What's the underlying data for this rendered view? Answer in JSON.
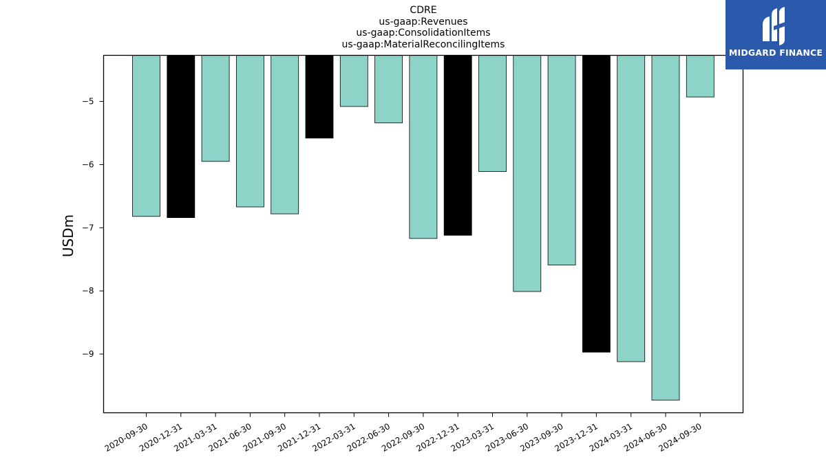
{
  "chart_data": {
    "type": "bar",
    "title": [
      "CDRE",
      "us-gaap:Revenues",
      "us-gaap:ConsolidationItems",
      "us-gaap:MaterialReconcilingItems"
    ],
    "ylabel": "USDm",
    "xlabel": "",
    "categories": [
      "2020-09-30",
      "2020-12-31",
      "2021-03-31",
      "2021-06-30",
      "2021-09-30",
      "2021-12-31",
      "2022-03-31",
      "2022-06-30",
      "2022-09-30",
      "2022-12-31",
      "2023-03-31",
      "2023-06-30",
      "2023-09-30",
      "2023-12-31",
      "2024-03-31",
      "2024-06-30",
      "2024-09-30"
    ],
    "values": [
      -6.82,
      -6.84,
      -5.95,
      -6.67,
      -6.78,
      -5.58,
      -5.08,
      -5.34,
      -7.17,
      -7.12,
      -6.11,
      -8.01,
      -7.59,
      -8.97,
      -9.12,
      -9.73,
      -4.93
    ],
    "highlight": [
      false,
      true,
      false,
      false,
      false,
      true,
      false,
      false,
      false,
      true,
      false,
      false,
      false,
      true,
      false,
      false,
      false
    ],
    "ylim": [
      -9.93,
      -4.27
    ],
    "yticks": [
      -9,
      -8,
      -7,
      -6,
      -5
    ],
    "ytick_labels": [
      "−9",
      "−8",
      "−7",
      "−6",
      "−5"
    ],
    "bar_color": "#8dd3c7",
    "highlight_color": "#000000",
    "grid": false,
    "legend": "none"
  },
  "logo": {
    "text": "MIDGARD FINANCE",
    "background": "#2b5aad"
  }
}
